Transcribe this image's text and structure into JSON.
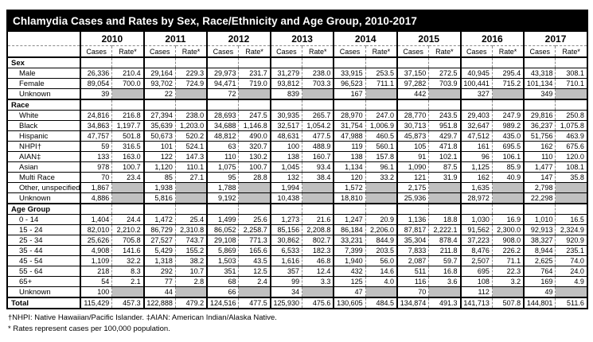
{
  "page": {
    "title": "Chlamydia Cases and Rates by Sex, Race/Ethnicity and Age Group, 2010-2017"
  },
  "colors": {
    "title_bar_bg": "#000000",
    "title_bar_text": "#ffffff",
    "shaded_cell": "#c0c0c0"
  },
  "table": {
    "years": [
      "2010",
      "2011",
      "2012",
      "2013",
      "2014",
      "2015",
      "2016",
      "2017"
    ],
    "col_subheaders": [
      "Cases",
      "Rate*"
    ],
    "sections": [
      {
        "label": "Sex",
        "rows": [
          {
            "label": "Male",
            "values": [
              "26,336",
              "210.4",
              "29,164",
              "229.3",
              "29,973",
              "231.7",
              "31,279",
              "238.0",
              "33,915",
              "253.5",
              "37,150",
              "272.5",
              "40,945",
              "295.4",
              "43,318",
              "308.1"
            ]
          },
          {
            "label": "Female",
            "values": [
              "89,054",
              "700.0",
              "93,702",
              "724.9",
              "94,471",
              "719.0",
              "93,812",
              "703.3",
              "96,523",
              "711.1",
              "97,282",
              "703.9",
              "100,441",
              "715.2",
              "101,134",
              "710.1"
            ]
          },
          {
            "label": "Unknown",
            "values": [
              "39",
              null,
              "22",
              null,
              "72",
              null,
              "839",
              null,
              "167",
              null,
              "442",
              null,
              "327",
              null,
              "349",
              null
            ]
          }
        ]
      },
      {
        "label": "Race",
        "rows": [
          {
            "label": "White",
            "values": [
              "24,816",
              "216.8",
              "27,394",
              "238.0",
              "28,693",
              "247.5",
              "30,935",
              "265.7",
              "28,970",
              "247.0",
              "28,770",
              "243.5",
              "29,403",
              "247.9",
              "29,816",
              "250.8"
            ]
          },
          {
            "label": "Black",
            "values": [
              "34,863",
              "1,197.7",
              "35,639",
              "1,203.0",
              "34,688",
              "1,146.8",
              "32,517",
              "1,054.2",
              "31,754",
              "1,006.9",
              "30,713",
              "951.8",
              "32,647",
              "989.2",
              "36,237",
              "1,075.8"
            ]
          },
          {
            "label": "Hispanic",
            "values": [
              "47,757",
              "501.8",
              "50,673",
              "520.2",
              "48,812",
              "490.0",
              "48,631",
              "477.5",
              "47,988",
              "460.5",
              "45,873",
              "429.7",
              "47,512",
              "435.0",
              "51,756",
              "463.9"
            ]
          },
          {
            "label": "NHPI†",
            "values": [
              "59",
              "316.5",
              "101",
              "524.1",
              "63",
              "320.7",
              "100",
              "488.9",
              "119",
              "560.1",
              "105",
              "471.8",
              "161",
              "695.5",
              "162",
              "675.6"
            ]
          },
          {
            "label": "AIAN‡",
            "values": [
              "133",
              "163.0",
              "122",
              "147.3",
              "110",
              "130.2",
              "138",
              "160.7",
              "138",
              "157.8",
              "91",
              "102.1",
              "96",
              "106.1",
              "110",
              "120.0"
            ]
          },
          {
            "label": "Asian",
            "values": [
              "978",
              "100.7",
              "1,120",
              "110.1",
              "1,075",
              "100.7",
              "1,045",
              "93.4",
              "1,134",
              "96.1",
              "1,090",
              "87.5",
              "1,125",
              "85.9",
              "1,477",
              "108.1"
            ]
          },
          {
            "label": "Multi Race",
            "values": [
              "70",
              "23.4",
              "85",
              "27.1",
              "95",
              "28.8",
              "132",
              "38.4",
              "120",
              "33.2",
              "121",
              "31.9",
              "162",
              "40.9",
              "147",
              "35.8"
            ]
          },
          {
            "label": "Other, unspecified",
            "values": [
              "1,867",
              null,
              "1,938",
              null,
              "1,788",
              null,
              "1,994",
              null,
              "1,572",
              null,
              "2,175",
              null,
              "1,635",
              null,
              "2,798",
              null
            ]
          },
          {
            "label": "Unknown",
            "values": [
              "4,886",
              null,
              "5,816",
              null,
              "9,192",
              null,
              "10,438",
              null,
              "18,810",
              null,
              "25,936",
              null,
              "28,972",
              null,
              "22,298",
              null
            ]
          }
        ]
      },
      {
        "label": "Age Group",
        "rows": [
          {
            "label": "0 - 14",
            "values": [
              "1,404",
              "24.4",
              "1,472",
              "25.4",
              "1,499",
              "25.6",
              "1,273",
              "21.6",
              "1,247",
              "20.9",
              "1,136",
              "18.8",
              "1,030",
              "16.9",
              "1,010",
              "16.5"
            ]
          },
          {
            "label": "15 - 24",
            "values": [
              "82,010",
              "2,210.2",
              "86,729",
              "2,310.8",
              "86,052",
              "2,258.7",
              "85,156",
              "2,208.8",
              "86,184",
              "2,206.0",
              "87,817",
              "2,222.1",
              "91,562",
              "2,300.0",
              "92,913",
              "2,324.9"
            ]
          },
          {
            "label": "25 - 34",
            "values": [
              "25,626",
              "705.8",
              "27,527",
              "743.7",
              "29,108",
              "771.3",
              "30,862",
              "802.7",
              "33,231",
              "844.9",
              "35,304",
              "878.4",
              "37,223",
              "908.0",
              "38,327",
              "920.9"
            ]
          },
          {
            "label": "35 - 44",
            "values": [
              "4,908",
              "141.6",
              "5,429",
              "155.2",
              "5,869",
              "165.6",
              "6,533",
              "182.3",
              "7,399",
              "203.5",
              "7,833",
              "211.8",
              "8,476",
              "226.2",
              "8,944",
              "235.1"
            ]
          },
          {
            "label": "45 - 54",
            "values": [
              "1,109",
              "32.2",
              "1,318",
              "38.2",
              "1,503",
              "43.5",
              "1,616",
              "46.8",
              "1,940",
              "56.0",
              "2,087",
              "59.7",
              "2,507",
              "71.1",
              "2,625",
              "74.0"
            ]
          },
          {
            "label": "55 - 64",
            "values": [
              "218",
              "8.3",
              "292",
              "10.7",
              "351",
              "12.5",
              "357",
              "12.4",
              "432",
              "14.6",
              "511",
              "16.8",
              "695",
              "22.3",
              "764",
              "24.0"
            ]
          },
          {
            "label": "65+",
            "values": [
              "54",
              "2.1",
              "77",
              "2.8",
              "68",
              "2.4",
              "99",
              "3.3",
              "125",
              "4.0",
              "116",
              "3.6",
              "108",
              "3.2",
              "169",
              "4.9"
            ]
          },
          {
            "label": "Unknown",
            "values": [
              "100",
              null,
              "44",
              null,
              "66",
              null,
              "34",
              null,
              "47",
              null,
              "70",
              null,
              "112",
              null,
              "49",
              null
            ]
          }
        ]
      }
    ],
    "total_row": {
      "label": "Total",
      "values": [
        "115,429",
        "457.3",
        "122,888",
        "479.2",
        "124,516",
        "477.5",
        "125,930",
        "475.6",
        "130,605",
        "484.5",
        "134,874",
        "491.3",
        "141,713",
        "507.8",
        "144,801",
        "511.6"
      ]
    }
  },
  "footnotes": [
    "†NHPI: Native Hawaiian/Pacific Islander. ‡AIAN: American Indian/Alaska Native.",
    "* Rates represent cases per 100,000 population."
  ]
}
